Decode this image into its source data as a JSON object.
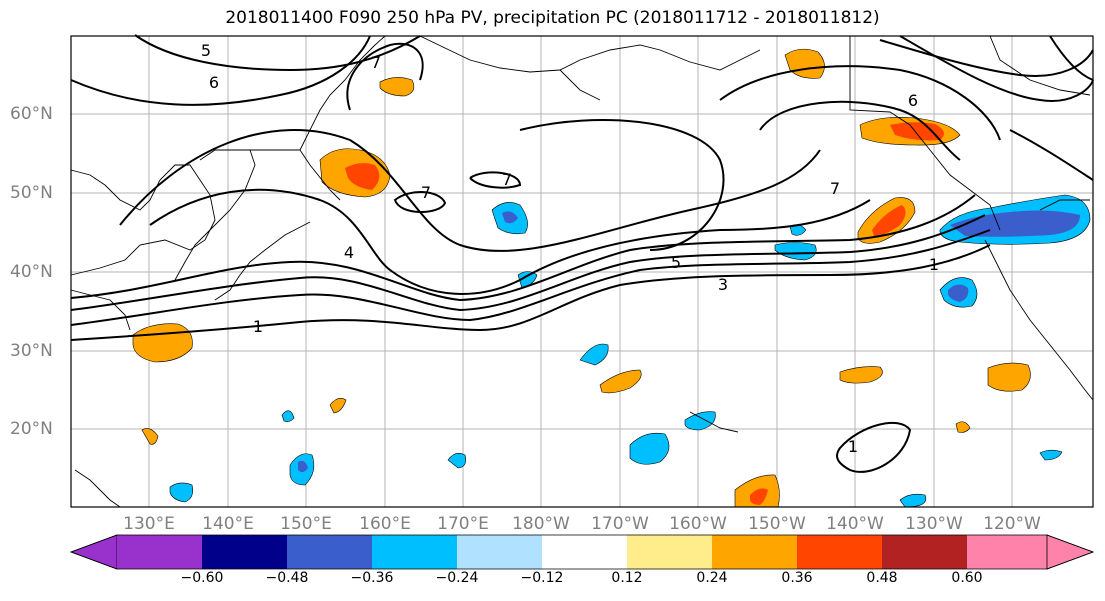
{
  "title": "2018011400 F090 250 hPa PV, precipitation PC (2018011712 - 2018011812)",
  "lat_labels": [
    "60°N",
    "50°N",
    "40°N",
    "30°N",
    "20°N"
  ],
  "lon_labels": [
    "130°E",
    "140°E",
    "150°E",
    "160°E",
    "170°E",
    "180°W",
    "170°W",
    "160°W",
    "150°W",
    "140°W",
    "130°W",
    "120°W"
  ],
  "contour_labels": [
    "5",
    "6",
    "7",
    "7",
    "7",
    "6",
    "7",
    "4",
    "5",
    "3",
    "1",
    "1",
    "1"
  ],
  "colorbar": {
    "ticks": [
      "−0.60",
      "−0.48",
      "−0.36",
      "−0.24",
      "−0.12",
      "0.12",
      "0.24",
      "0.36",
      "0.48",
      "0.60"
    ],
    "colors": [
      "#9932cc",
      "#00008b",
      "#3a5fcd",
      "#00bfff",
      "#b0e2ff",
      "#ffffff",
      "#ffec8b",
      "#ffa500",
      "#ff4500",
      "#b22222",
      "#ff82ab"
    ]
  }
}
